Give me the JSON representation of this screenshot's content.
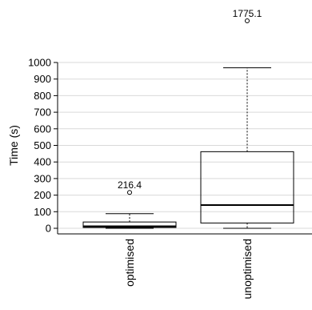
{
  "chart_data": {
    "type": "boxplot",
    "title": "",
    "xlabel": "",
    "ylabel": "Time (s)",
    "ylim": [
      0,
      1000
    ],
    "yticks": [
      0,
      100,
      200,
      300,
      400,
      500,
      600,
      700,
      800,
      900,
      1000
    ],
    "grid": "horizontal",
    "categories": [
      "optimised",
      "unoptimised"
    ],
    "boxes": [
      {
        "category": "optimised",
        "whisker_low": 0,
        "q1": 5,
        "median": 12,
        "q3": 38,
        "whisker_high": 88,
        "outliers": [
          {
            "value": 216.4,
            "label": "216.4"
          }
        ]
      },
      {
        "category": "unoptimised",
        "whisker_low": 0,
        "q1": 32,
        "median": 140,
        "q3": 462,
        "whisker_high": 968,
        "outliers": [
          {
            "value": 1775.1,
            "label": "1775.1"
          }
        ]
      }
    ]
  }
}
